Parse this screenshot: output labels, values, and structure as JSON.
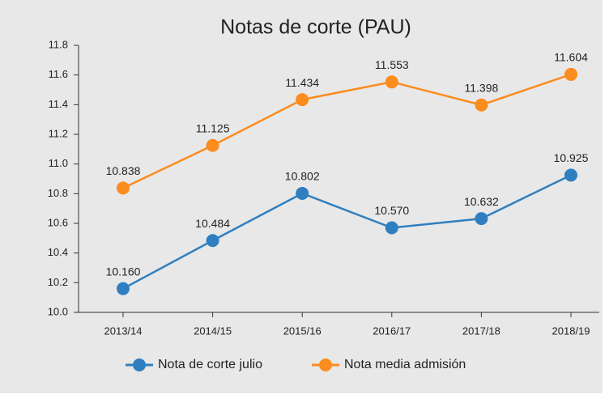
{
  "chart_data": {
    "type": "line",
    "title": "Notas de corte (PAU)",
    "categories": [
      "2013/14",
      "2014/15",
      "2015/16",
      "2016/17",
      "2017/18",
      "2018/19"
    ],
    "series": [
      {
        "name": "Nota de corte julio",
        "color": "#2f7fc0",
        "values": [
          10.16,
          10.484,
          10.802,
          10.57,
          10.632,
          10.925
        ],
        "value_labels": [
          "10.160",
          "10.484",
          "10.802",
          "10.570",
          "10.632",
          "10.925"
        ]
      },
      {
        "name": "Nota media admisión",
        "color": "#fb8c1e",
        "values": [
          10.838,
          11.125,
          11.434,
          11.553,
          11.398,
          11.604
        ],
        "value_labels": [
          "10.838",
          "11.125",
          "11.434",
          "11.553",
          "11.398",
          "11.604"
        ]
      }
    ],
    "ylim": [
      10,
      11.8
    ],
    "yticks": [
      {
        "value": 10,
        "label": "10.0"
      },
      10.2,
      10.4,
      10.6,
      10.8,
      {
        "value": 11,
        "label": "11.0"
      },
      11.2,
      11.4,
      11.6,
      11.8
    ],
    "legend": "bottom"
  }
}
